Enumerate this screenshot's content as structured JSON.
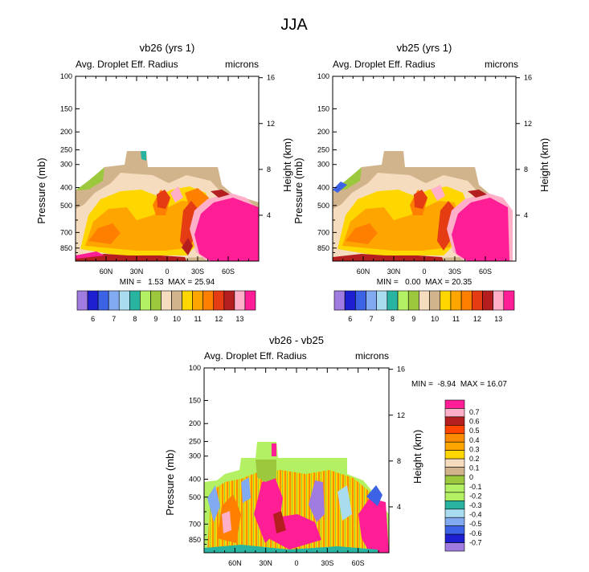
{
  "figure_title": "JJA",
  "chart_data": [
    {
      "type": "heatmap",
      "title": "vb26 (yrs 1)",
      "left_label": "Avg. Droplet Eff. Radius",
      "right_label": "microns",
      "ylabel": "Pressure (mb)",
      "ylabel_right": "Height (km)",
      "x_ticks": [
        "60N",
        "30N",
        "0",
        "30S",
        "60S"
      ],
      "x_tick_lats": [
        60,
        30,
        0,
        -30,
        -60
      ],
      "x_range": [
        90,
        -90
      ],
      "p_ticks": [
        100,
        150,
        200,
        250,
        300,
        400,
        500,
        700,
        850
      ],
      "p_range": [
        100,
        1000
      ],
      "height_ticks": [
        16,
        12,
        8,
        4
      ],
      "stats": "MIN =   1.53  MAX = 25.94",
      "colorbar_labels": [
        "6",
        "7",
        "8",
        "9",
        "10",
        "11",
        "12",
        "13"
      ],
      "colorbar_colors": [
        "#a07ce0",
        "#1f1fd2",
        "#3c62e6",
        "#82aaf0",
        "#aadcf0",
        "#28b4a0",
        "#b4f064",
        "#9bc83c",
        "#f5dcbe",
        "#d2b48c",
        "#ffd700",
        "#ffa500",
        "#ff7f00",
        "#e63c14",
        "#b41e1e",
        "#ffafc8",
        "#ff1e96"
      ]
    },
    {
      "type": "heatmap",
      "title": "vb25 (yrs 1)",
      "left_label": "Avg. Droplet Eff. Radius",
      "right_label": "microns",
      "ylabel": "Pressure (mb)",
      "ylabel_right": "Height (km)",
      "x_ticks": [
        "60N",
        "30N",
        "0",
        "30S",
        "60S"
      ],
      "x_tick_lats": [
        60,
        30,
        0,
        -30,
        -60
      ],
      "x_range": [
        90,
        -90
      ],
      "p_ticks": [
        100,
        150,
        200,
        250,
        300,
        400,
        500,
        700,
        850
      ],
      "p_range": [
        100,
        1000
      ],
      "height_ticks": [
        16,
        12,
        8,
        4
      ],
      "stats": "MIN =   0.00  MAX = 20.35",
      "colorbar_labels": [
        "6",
        "7",
        "8",
        "9",
        "10",
        "11",
        "12",
        "13"
      ],
      "colorbar_colors": [
        "#a07ce0",
        "#1f1fd2",
        "#3c62e6",
        "#82aaf0",
        "#aadcf0",
        "#28b4a0",
        "#b4f064",
        "#9bc83c",
        "#f5dcbe",
        "#d2b48c",
        "#ffd700",
        "#ffa500",
        "#ff7f00",
        "#e63c14",
        "#b41e1e",
        "#ffafc8",
        "#ff1e96"
      ]
    },
    {
      "type": "heatmap",
      "title": "vb26 - vb25",
      "left_label": "Avg. Droplet Eff. Radius",
      "right_label": "microns",
      "ylabel": "Pressure (mb)",
      "ylabel_right": "Height (km)",
      "x_ticks": [
        "60N",
        "30N",
        "0",
        "30S",
        "60S"
      ],
      "x_tick_lats": [
        60,
        30,
        0,
        -30,
        -60
      ],
      "x_range": [
        90,
        -90
      ],
      "p_ticks": [
        100,
        150,
        200,
        250,
        300,
        400,
        500,
        700,
        850
      ],
      "p_range": [
        100,
        1000
      ],
      "height_ticks": [
        16,
        12,
        8,
        4
      ],
      "stats": "MIN =  -8.94  MAX = 16.07",
      "colorbar_labels": [
        "0.7",
        "0.6",
        "0.5",
        "0.4",
        "0.3",
        "0.2",
        "0.1",
        "0",
        "-0.1",
        "-0.2",
        "-0.3",
        "-0.4",
        "-0.5",
        "-0.6",
        "-0.7"
      ],
      "colorbar_colors": [
        "#ff1e96",
        "#ffafc8",
        "#b41e1e",
        "#ff4500",
        "#ff8c00",
        "#ffa500",
        "#ffd700",
        "#f5dcbe",
        "#d2b48c",
        "#9bc83c",
        "#b4f064",
        "#b4f064",
        "#28b4a0",
        "#aadcf0",
        "#82aaf0",
        "#3c62e6",
        "#1f1fd2",
        "#a07ce0"
      ]
    }
  ]
}
